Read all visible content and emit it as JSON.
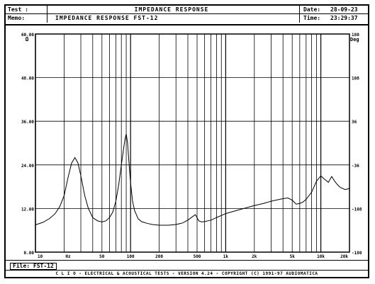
{
  "header": {
    "test_label": "Test :",
    "test_value": "IMPEDANCE RESPONSE",
    "memo_label": "Memo:",
    "memo_value": "IMPEDANCE RESPONSE FST-12",
    "date_label": "Date:",
    "date_value": "28-09-23",
    "time_label": "Time:",
    "time_value": "23:29:37"
  },
  "file": {
    "label": "File: FST-12"
  },
  "footer": {
    "text": "C L I O  -  ELECTRICAL & ACOUSTICAL TESTS  -  VERSION 4.24  -  COPYRIGHT (C) 1991-97 AUDIOMATICA"
  },
  "chart_data": {
    "type": "line",
    "title": "IMPEDANCE RESPONSE",
    "xscale": "log",
    "xlim": [
      10,
      20000
    ],
    "ylim": [
      0,
      60
    ],
    "y_right_lim": [
      -180,
      180
    ],
    "y_left_unit": "Ω",
    "y_right_unit": "Deg",
    "y_left_ticks": [
      "0.00",
      "12.00",
      "24.00",
      "36.00",
      "48.00",
      "60.00"
    ],
    "y_right_ticks": [
      "-180",
      "-108",
      "-36",
      "36",
      "108",
      "180"
    ],
    "x_tick_labels": [
      {
        "x": 10,
        "label": "10"
      },
      {
        "x": 20,
        "label": "Hz"
      },
      {
        "x": 50,
        "label": "50"
      },
      {
        "x": 100,
        "label": "100"
      },
      {
        "x": 200,
        "label": "200"
      },
      {
        "x": 500,
        "label": "500"
      },
      {
        "x": 1000,
        "label": "1k"
      },
      {
        "x": 2000,
        "label": "2k"
      },
      {
        "x": 5000,
        "label": "5k"
      },
      {
        "x": 10000,
        "label": "10k"
      },
      {
        "x": 20000,
        "label": "20k"
      }
    ],
    "grid": true,
    "series": [
      {
        "x": [
          10,
          12,
          14,
          16,
          18,
          20,
          22,
          24,
          26,
          28,
          30,
          33,
          36,
          40,
          45,
          50,
          55,
          60,
          65,
          70,
          75,
          80,
          85,
          88,
          90,
          93,
          96,
          100,
          105,
          110,
          120,
          130,
          150,
          170,
          200,
          250,
          300,
          350,
          400,
          450,
          480,
          500,
          520,
          560,
          600,
          700,
          800,
          1000,
          1200,
          1500,
          2000,
          2500,
          3000,
          3500,
          4000,
          4500,
          5000,
          5500,
          6000,
          6500,
          7000,
          8000,
          9000,
          10000,
          11000,
          12000,
          13000,
          14000,
          15000,
          16000,
          18000,
          20000
        ],
        "y": [
          7.5,
          8.2,
          9.2,
          10.5,
          12.5,
          15.5,
          20.5,
          24.5,
          26.0,
          24.5,
          21.0,
          15.5,
          12.0,
          9.5,
          8.6,
          8.3,
          8.6,
          9.5,
          11.0,
          14.0,
          18.5,
          24.0,
          29.0,
          31.5,
          32.5,
          30.0,
          25.0,
          19.0,
          14.0,
          11.5,
          9.2,
          8.4,
          7.9,
          7.6,
          7.4,
          7.4,
          7.6,
          8.0,
          8.8,
          9.8,
          10.3,
          9.5,
          8.6,
          8.3,
          8.4,
          8.8,
          9.5,
          10.6,
          11.2,
          11.9,
          12.8,
          13.4,
          14.0,
          14.4,
          14.7,
          14.9,
          14.3,
          13.2,
          13.4,
          13.8,
          14.5,
          16.5,
          19.5,
          21.0,
          20.0,
          19.2,
          20.8,
          19.5,
          18.5,
          17.8,
          17.2,
          17.5
        ]
      }
    ]
  }
}
